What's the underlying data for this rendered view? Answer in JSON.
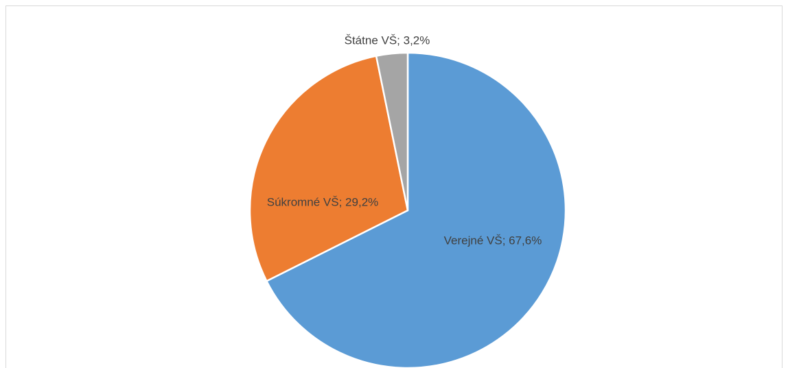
{
  "chart_data": {
    "type": "pie",
    "values": [
      67.6,
      29.2,
      3.2
    ],
    "value_labels": [
      "Verejné VŠ; 67,6%",
      "Súkromné VŠ; 29,2%",
      "Štátne VŠ; 3,2%"
    ],
    "colors": [
      "#5b9bd5",
      "#ed7d31",
      "#a5a5a5"
    ]
  }
}
